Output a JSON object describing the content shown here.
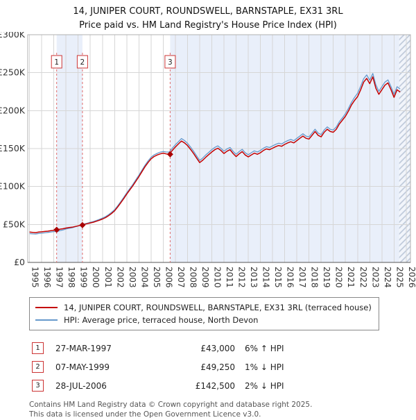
{
  "title": {
    "line1": "14, JUNIPER COURT, ROUNDSWELL, BARNSTAPLE, EX31 3RL",
    "line2": "Price paid vs. HM Land Registry's House Price Index (HPI)"
  },
  "legend": {
    "items": [
      {
        "label": "14, JUNIPER COURT, ROUNDSWELL, BARNSTAPLE, EX31 3RL (terraced house)",
        "color": "#c40000"
      },
      {
        "label": "HPI: Average price, terraced house, North Devon",
        "color": "#6699cc"
      }
    ]
  },
  "table": {
    "rows": [
      {
        "num": "1",
        "date": "27-MAR-1997",
        "price": "£43,000",
        "hpi": "6% ↑ HPI"
      },
      {
        "num": "2",
        "date": "07-MAY-1999",
        "price": "£49,250",
        "hpi": "1% ↓ HPI"
      },
      {
        "num": "3",
        "date": "28-JUL-2006",
        "price": "£142,500",
        "hpi": "2% ↓ HPI"
      }
    ]
  },
  "footer": {
    "line1": "Contains HM Land Registry data © Crown copyright and database right 2025.",
    "line2": "This data is licensed under the Open Government Licence v3.0."
  },
  "chart_data": {
    "type": "line",
    "title": "14, JUNIPER COURT, ROUNDSWELL, BARNSTAPLE, EX31 3RL",
    "subtitle": "Price paid vs. HM Land Registry's House Price Index (HPI)",
    "y_unit": "£K",
    "ylim": [
      0,
      300
    ],
    "xlim": [
      1994.85,
      2026.35
    ],
    "x_start": 1995,
    "x_step": 0.25,
    "y_ticks": [
      {
        "v": 0,
        "label": "£0"
      },
      {
        "v": 50,
        "label": "£50K"
      },
      {
        "v": 100,
        "label": "£100K"
      },
      {
        "v": 150,
        "label": "£150K"
      },
      {
        "v": 200,
        "label": "£200K"
      },
      {
        "v": 250,
        "label": "£250K"
      },
      {
        "v": 300,
        "label": "£300K"
      }
    ],
    "x_ticks": [
      1995,
      1996,
      1997,
      1998,
      1999,
      2000,
      2001,
      2002,
      2003,
      2004,
      2005,
      2006,
      2007,
      2008,
      2009,
      2010,
      2011,
      2012,
      2013,
      2014,
      2015,
      2016,
      2017,
      2018,
      2019,
      2020,
      2021,
      2022,
      2023,
      2024,
      2025,
      2026
    ],
    "series": [
      {
        "name": "14, JUNIPER COURT, ROUNDSWELL, BARNSTAPLE, EX31 3RL (terraced house)",
        "color": "#c40000",
        "values": [
          40,
          39.5,
          39.2,
          40,
          40.3,
          40.8,
          41.2,
          41.8,
          42.3,
          43,
          43.8,
          44.4,
          45.3,
          45.9,
          46.4,
          47.3,
          48.2,
          49.2,
          50.1,
          51,
          52,
          53,
          54.2,
          55.6,
          57.2,
          59,
          61.5,
          64.5,
          68,
          73,
          78.5,
          84,
          90,
          95.5,
          101,
          107,
          113,
          119.5,
          126,
          131.5,
          136.5,
          139.5,
          141.5,
          143,
          144,
          143,
          142.5,
          147.5,
          152,
          156,
          160,
          157.5,
          154,
          149,
          143.5,
          137.5,
          131.5,
          134.5,
          138.5,
          142,
          145.5,
          148.5,
          150.5,
          147.5,
          143.5,
          146.5,
          148.5,
          143.5,
          139.5,
          143,
          146,
          141.5,
          139,
          141.5,
          144,
          142.5,
          144.5,
          147.5,
          149.5,
          148.5,
          150.5,
          152.5,
          154,
          153,
          155.5,
          157.5,
          159,
          157.5,
          160.5,
          163.5,
          166.5,
          163.5,
          162.5,
          167.5,
          172.5,
          167.5,
          165.5,
          171.5,
          175.5,
          172.5,
          171.5,
          175.5,
          182.5,
          187.5,
          192.5,
          199.5,
          207.5,
          213.5,
          218.5,
          227.5,
          237.5,
          242.5,
          235.5,
          244.5,
          229.5,
          221.5,
          227.5,
          233.5,
          236.5,
          227.5,
          217.5,
          227.5,
          224.5
        ]
      },
      {
        "name": "HPI: Average price, terraced house, North Devon",
        "color": "#6699cc",
        "values": [
          38,
          37.6,
          37.4,
          38.1,
          38.5,
          39,
          39.5,
          40.1,
          40.6,
          40.6,
          41.8,
          42.8,
          44,
          44.9,
          45.6,
          46.8,
          48,
          49.7,
          50.7,
          51.7,
          52.8,
          53.9,
          55.2,
          56.7,
          58.4,
          60.3,
          62.8,
          65.9,
          69.5,
          74.5,
          80,
          85.6,
          91.7,
          97.2,
          102.8,
          108.9,
          115,
          121.5,
          128,
          133.6,
          138.6,
          141.6,
          143.6,
          145.2,
          146.2,
          145.4,
          145.4,
          150.4,
          155,
          159,
          163.2,
          160.6,
          157,
          152,
          146.4,
          140.4,
          134.4,
          137.5,
          141.5,
          145,
          148.6,
          151.6,
          153.6,
          150.4,
          146.4,
          149.5,
          151.5,
          146.4,
          142.4,
          146,
          149,
          144.4,
          141.9,
          144.5,
          147,
          145.4,
          147.5,
          150.5,
          152.5,
          151.4,
          153.5,
          155.5,
          157,
          156,
          158.5,
          160.5,
          162,
          160.4,
          163.5,
          166.5,
          169.5,
          166.4,
          165.5,
          170.5,
          175.5,
          170.4,
          168.5,
          174.5,
          178.5,
          175.4,
          174.5,
          178.5,
          185.5,
          190.5,
          196,
          203,
          211,
          217.5,
          223,
          232,
          242,
          247,
          240,
          249,
          234,
          225.5,
          231.5,
          237.5,
          240.5,
          231.5,
          221.5,
          231.5,
          228.5
        ]
      }
    ],
    "sales": [
      {
        "n": "1",
        "x": 1997.23,
        "y": 43
      },
      {
        "n": "2",
        "x": 1999.35,
        "y": 49.25
      },
      {
        "n": "3",
        "x": 2006.57,
        "y": 142.5
      }
    ],
    "bands": [
      {
        "from": 1997.23,
        "to": 1999.35
      },
      {
        "from": 2006.57,
        "to": 2025.42
      }
    ],
    "hatch": {
      "from": 2025.42,
      "to": 2026.35
    },
    "colors": {
      "band": "#e9effa",
      "dash": "#e06a6a",
      "diamond": "#aa0000",
      "grid": "#d6d6d6",
      "border": "#b0b0b0",
      "axis": "#555555",
      "hatch_bg": "#f2f5fb",
      "hatch_line": "#bcc7d8",
      "tick_text": "#333333"
    }
  }
}
